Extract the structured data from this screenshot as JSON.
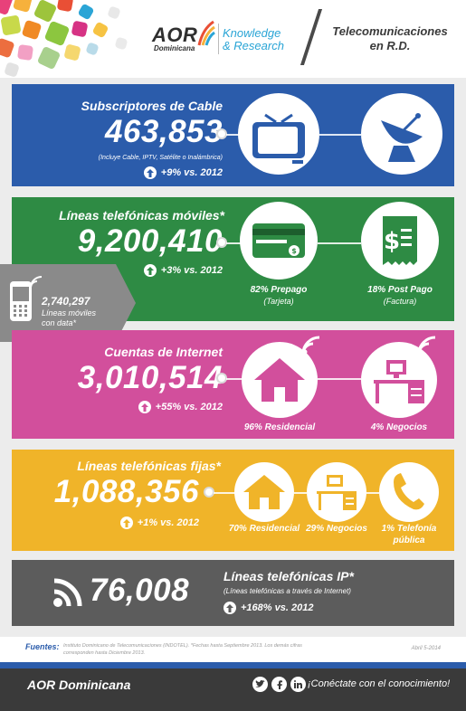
{
  "header": {
    "logo_main": "AOR",
    "logo_sub": "Dominicana",
    "brand_line1": "Knowledge",
    "brand_line2": "& Research",
    "title_line1": "Telecomunicaciones",
    "title_line2": "en R.D."
  },
  "cable": {
    "title": "Subscriptores de Cable",
    "value": "463,853",
    "note": "(Incluye Cable, IPTV, Satélite o Inalámbrica)",
    "growth": "+9% vs. 2012",
    "color": "#2b5cab"
  },
  "mobile": {
    "title": "Líneas telefónicas móviles*",
    "value": "9,200,410",
    "growth": "+3% vs. 2012",
    "prepaid_pct": "82% Prepago",
    "prepaid_sub": "(Tarjeta)",
    "postpaid_pct": "18% Post Pago",
    "postpaid_sub": "(Factura)",
    "color": "#2e8b44"
  },
  "mobile_data": {
    "value": "2,740,297",
    "line1": "Líneas móviles",
    "line2": "con data*",
    "color": "#8a8a8a"
  },
  "internet": {
    "title": "Cuentas de Internet",
    "value": "3,010,514",
    "growth": "+55% vs. 2012",
    "residential": "96% Residencial",
    "business": "4% Negocios",
    "color": "#d24f9c"
  },
  "fixed": {
    "title": "Líneas telefónicas fijas*",
    "value": "1,088,356",
    "growth": "+1% vs. 2012",
    "residential": "70% Residencial",
    "business": "29% Negocios",
    "public_line1": "1% Telefonía",
    "public_line2": "pública",
    "color": "#f0b429"
  },
  "ip": {
    "value": "76,008",
    "title": "Líneas telefónicas IP*",
    "note": "(Líneas telefónicas a través de Internet)",
    "growth": "+168% vs. 2012",
    "color": "#5c5c5c"
  },
  "sources": {
    "label": "Fuentes:",
    "text_line1": "Instituto Dominicano de Telecomunicaciones (INDOTEL). *Fechas hasta Septiembre 2013. Los demás cifras",
    "text_line2": "corresponden hasta Diciembre 2013.",
    "date": "Abril 5-2014"
  },
  "footer": {
    "brand": "AOR Dominicana",
    "tagline": "¡Conéctate con el conocimiento!",
    "social": [
      "twitter-icon",
      "facebook-icon",
      "linkedin-icon"
    ]
  }
}
